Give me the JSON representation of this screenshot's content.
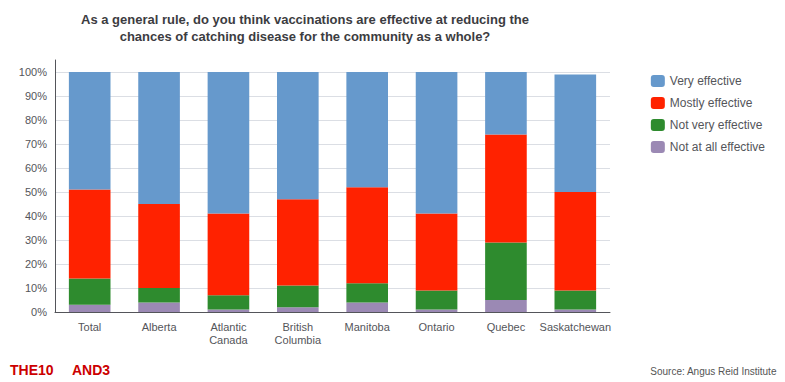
{
  "chart_data": {
    "type": "bar",
    "stacked": true,
    "title": "As a general rule, do you think vaccinations are effective at reducing the\nchances of catching disease for the community as a whole?",
    "categories": [
      "Total",
      "Alberta",
      "Atlantic\nCanada",
      "British\nColumbia",
      "Manitoba",
      "Ontario",
      "Quebec",
      "Saskatchewan"
    ],
    "series": [
      {
        "name": "Not at all effective",
        "color": "#9b89b4",
        "values": [
          3,
          4,
          1,
          2,
          4,
          1,
          5,
          1
        ]
      },
      {
        "name": "Not very effective",
        "color": "#2e8b2e",
        "values": [
          11,
          6,
          6,
          9,
          8,
          8,
          24,
          8
        ]
      },
      {
        "name": "Mostly effective",
        "color": "#ff2200",
        "values": [
          37,
          35,
          34,
          36,
          40,
          32,
          45,
          41
        ]
      },
      {
        "name": "Very effective",
        "color": "#6699cc",
        "values": [
          49,
          55,
          59,
          53,
          48,
          59,
          26,
          49
        ]
      }
    ],
    "ylim": [
      0,
      105
    ],
    "yticks": [
      {
        "value": 0,
        "label": "0%"
      },
      {
        "value": 10,
        "label": "10%"
      },
      {
        "value": 20,
        "label": "20%"
      },
      {
        "value": 30,
        "label": "30%"
      },
      {
        "value": 40,
        "label": "40%"
      },
      {
        "value": 50,
        "label": "50%"
      },
      {
        "value": 60,
        "label": "60%"
      },
      {
        "value": 70,
        "label": "70%"
      },
      {
        "value": 80,
        "label": "80%"
      },
      {
        "value": 90,
        "label": "90%"
      },
      {
        "value": 100,
        "label": "100%"
      }
    ],
    "grid": true,
    "legend": "right",
    "annotations": [
      {
        "text": "Source: Angus Reid Institute",
        "color": "#555555"
      },
      {
        "text": "THE10",
        "color": "#cc0000"
      },
      {
        "text": "AND3",
        "color": "#cc0000"
      }
    ]
  }
}
